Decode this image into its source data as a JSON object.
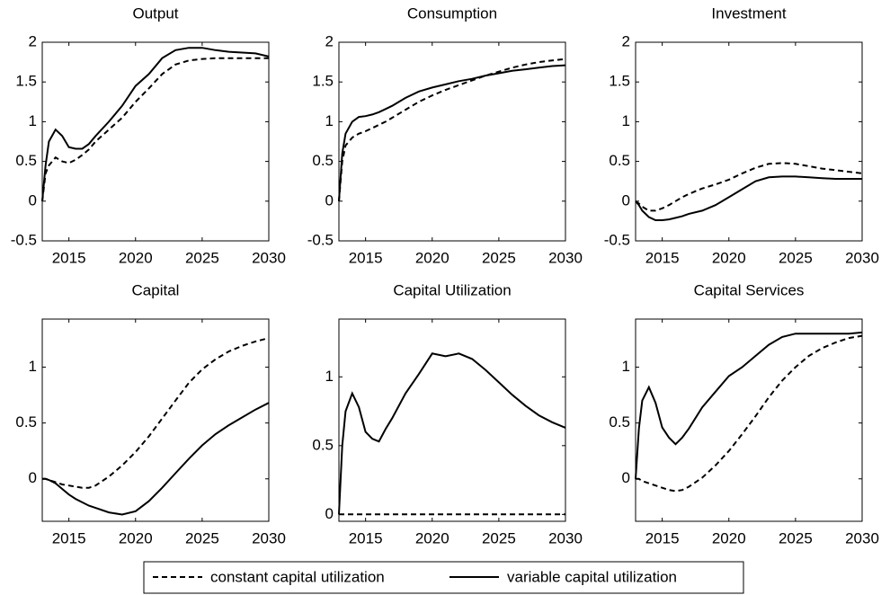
{
  "chart_data": [
    {
      "type": "line",
      "title": "Output",
      "x": [
        2013,
        2013.25,
        2013.5,
        2014,
        2014.5,
        2015,
        2015.5,
        2016,
        2016.5,
        2017,
        2018,
        2019,
        2020,
        2021,
        2022,
        2023,
        2024,
        2025,
        2026,
        2027,
        2028,
        2029,
        2030
      ],
      "xlim": [
        2013,
        2030
      ],
      "xticks": [
        2015,
        2020,
        2025,
        2030
      ],
      "ylim": [
        -0.5,
        2
      ],
      "yticks": [
        -0.5,
        0,
        0.5,
        1,
        1.5,
        2
      ],
      "series": [
        {
          "name": "constant capital utilization",
          "color": "#000000",
          "style": "dashed",
          "values": [
            0,
            0.35,
            0.45,
            0.55,
            0.5,
            0.48,
            0.52,
            0.58,
            0.65,
            0.75,
            0.9,
            1.05,
            1.25,
            1.42,
            1.6,
            1.72,
            1.77,
            1.79,
            1.8,
            1.8,
            1.8,
            1.8,
            1.8
          ]
        },
        {
          "name": "variable capital utilization",
          "color": "#000000",
          "style": "solid",
          "values": [
            0,
            0.45,
            0.75,
            0.9,
            0.82,
            0.68,
            0.66,
            0.66,
            0.72,
            0.82,
            1.0,
            1.2,
            1.45,
            1.6,
            1.8,
            1.9,
            1.93,
            1.93,
            1.9,
            1.88,
            1.87,
            1.86,
            1.82
          ]
        }
      ]
    },
    {
      "type": "line",
      "title": "Consumption",
      "x": [
        2013,
        2013.25,
        2013.5,
        2014,
        2014.5,
        2015,
        2015.5,
        2016,
        2016.5,
        2017,
        2018,
        2019,
        2020,
        2021,
        2022,
        2023,
        2024,
        2025,
        2026,
        2027,
        2028,
        2029,
        2030
      ],
      "xlim": [
        2013,
        2030
      ],
      "xticks": [
        2015,
        2020,
        2025,
        2030
      ],
      "ylim": [
        -0.5,
        2
      ],
      "yticks": [
        -0.5,
        0,
        0.5,
        1,
        1.5,
        2
      ],
      "series": [
        {
          "name": "constant capital utilization",
          "color": "#000000",
          "style": "dashed",
          "values": [
            0,
            0.5,
            0.7,
            0.8,
            0.85,
            0.88,
            0.92,
            0.96,
            1.0,
            1.05,
            1.15,
            1.25,
            1.33,
            1.4,
            1.46,
            1.52,
            1.58,
            1.63,
            1.68,
            1.72,
            1.75,
            1.77,
            1.79
          ]
        },
        {
          "name": "variable capital utilization",
          "color": "#000000",
          "style": "solid",
          "values": [
            0,
            0.6,
            0.85,
            1.0,
            1.06,
            1.07,
            1.09,
            1.12,
            1.16,
            1.2,
            1.3,
            1.38,
            1.43,
            1.47,
            1.51,
            1.54,
            1.58,
            1.61,
            1.64,
            1.66,
            1.68,
            1.7,
            1.71
          ]
        }
      ]
    },
    {
      "type": "line",
      "title": "Investment",
      "x": [
        2013,
        2013.25,
        2013.5,
        2014,
        2014.5,
        2015,
        2015.5,
        2016,
        2016.5,
        2017,
        2018,
        2019,
        2020,
        2021,
        2022,
        2023,
        2024,
        2025,
        2026,
        2027,
        2028,
        2029,
        2030
      ],
      "xlim": [
        2013,
        2030
      ],
      "xticks": [
        2015,
        2020,
        2025,
        2030
      ],
      "ylim": [
        -0.5,
        2
      ],
      "yticks": [
        -0.5,
        0,
        0.5,
        1,
        1.5,
        2
      ],
      "series": [
        {
          "name": "constant capital utilization",
          "color": "#000000",
          "style": "dashed",
          "values": [
            0,
            -0.03,
            -0.07,
            -0.12,
            -0.12,
            -0.09,
            -0.05,
            0.0,
            0.05,
            0.09,
            0.16,
            0.21,
            0.27,
            0.35,
            0.42,
            0.47,
            0.48,
            0.47,
            0.44,
            0.41,
            0.39,
            0.37,
            0.35
          ]
        },
        {
          "name": "variable capital utilization",
          "color": "#000000",
          "style": "solid",
          "values": [
            0,
            -0.05,
            -0.12,
            -0.2,
            -0.24,
            -0.24,
            -0.23,
            -0.21,
            -0.19,
            -0.16,
            -0.12,
            -0.05,
            0.05,
            0.15,
            0.25,
            0.3,
            0.31,
            0.31,
            0.3,
            0.29,
            0.28,
            0.28,
            0.28
          ]
        }
      ]
    },
    {
      "type": "line",
      "title": "Capital",
      "x": [
        2013,
        2013.25,
        2013.5,
        2014,
        2014.5,
        2015,
        2015.5,
        2016,
        2016.5,
        2017,
        2018,
        2019,
        2020,
        2021,
        2022,
        2023,
        2024,
        2025,
        2026,
        2027,
        2028,
        2029,
        2030
      ],
      "xlim": [
        2013,
        2030
      ],
      "xticks": [
        2015,
        2020,
        2025,
        2030
      ],
      "ylim": [
        -0.38,
        1.43
      ],
      "yticks": [
        0,
        0.5,
        1
      ],
      "series": [
        {
          "name": "constant capital utilization",
          "color": "#000000",
          "style": "dashed",
          "values": [
            0,
            0,
            -0.01,
            -0.03,
            -0.05,
            -0.06,
            -0.07,
            -0.08,
            -0.08,
            -0.06,
            0.02,
            0.12,
            0.24,
            0.38,
            0.54,
            0.7,
            0.86,
            0.98,
            1.07,
            1.14,
            1.19,
            1.23,
            1.26
          ]
        },
        {
          "name": "variable capital utilization",
          "color": "#000000",
          "style": "solid",
          "values": [
            0,
            0,
            -0.01,
            -0.04,
            -0.09,
            -0.14,
            -0.18,
            -0.21,
            -0.24,
            -0.26,
            -0.3,
            -0.32,
            -0.29,
            -0.2,
            -0.08,
            0.05,
            0.18,
            0.3,
            0.4,
            0.48,
            0.55,
            0.62,
            0.68
          ]
        }
      ]
    },
    {
      "type": "line",
      "title": "Capital Utilization",
      "x": [
        2013,
        2013.25,
        2013.5,
        2014,
        2014.5,
        2015,
        2015.5,
        2016,
        2016.5,
        2017,
        2018,
        2019,
        2020,
        2021,
        2022,
        2023,
        2024,
        2025,
        2026,
        2027,
        2028,
        2029,
        2030
      ],
      "xlim": [
        2013,
        2030
      ],
      "xticks": [
        2015,
        2020,
        2025,
        2030
      ],
      "ylim": [
        -0.05,
        1.42
      ],
      "yticks": [
        0,
        0.5,
        1
      ],
      "series": [
        {
          "name": "constant capital utilization",
          "color": "#000000",
          "style": "dashed",
          "values": [
            0,
            0,
            0,
            0,
            0,
            0,
            0,
            0,
            0,
            0,
            0,
            0,
            0,
            0,
            0,
            0,
            0,
            0,
            0,
            0,
            0,
            0,
            0
          ]
        },
        {
          "name": "variable capital utilization",
          "color": "#000000",
          "style": "solid",
          "values": [
            0,
            0.5,
            0.75,
            0.88,
            0.78,
            0.6,
            0.55,
            0.53,
            0.62,
            0.7,
            0.88,
            1.02,
            1.17,
            1.15,
            1.17,
            1.13,
            1.05,
            0.96,
            0.87,
            0.79,
            0.72,
            0.67,
            0.63
          ]
        }
      ]
    },
    {
      "type": "line",
      "title": "Capital Services",
      "x": [
        2013,
        2013.25,
        2013.5,
        2014,
        2014.5,
        2015,
        2015.5,
        2016,
        2016.5,
        2017,
        2018,
        2019,
        2020,
        2021,
        2022,
        2023,
        2024,
        2025,
        2026,
        2027,
        2028,
        2029,
        2030
      ],
      "xlim": [
        2013,
        2030
      ],
      "xticks": [
        2015,
        2020,
        2025,
        2030
      ],
      "ylim": [
        -0.38,
        1.43
      ],
      "yticks": [
        0,
        0.5,
        1
      ],
      "series": [
        {
          "name": "constant capital utilization",
          "color": "#000000",
          "style": "dashed",
          "values": [
            0,
            0,
            -0.02,
            -0.04,
            -0.06,
            -0.08,
            -0.1,
            -0.11,
            -0.1,
            -0.07,
            0.01,
            0.12,
            0.25,
            0.4,
            0.56,
            0.73,
            0.88,
            1.0,
            1.1,
            1.17,
            1.22,
            1.26,
            1.28
          ]
        },
        {
          "name": "variable capital utilization",
          "color": "#000000",
          "style": "solid",
          "values": [
            0,
            0.45,
            0.7,
            0.82,
            0.68,
            0.46,
            0.37,
            0.31,
            0.37,
            0.45,
            0.64,
            0.78,
            0.92,
            1.0,
            1.1,
            1.2,
            1.27,
            1.3,
            1.3,
            1.3,
            1.3,
            1.3,
            1.31
          ]
        }
      ]
    }
  ]
}
